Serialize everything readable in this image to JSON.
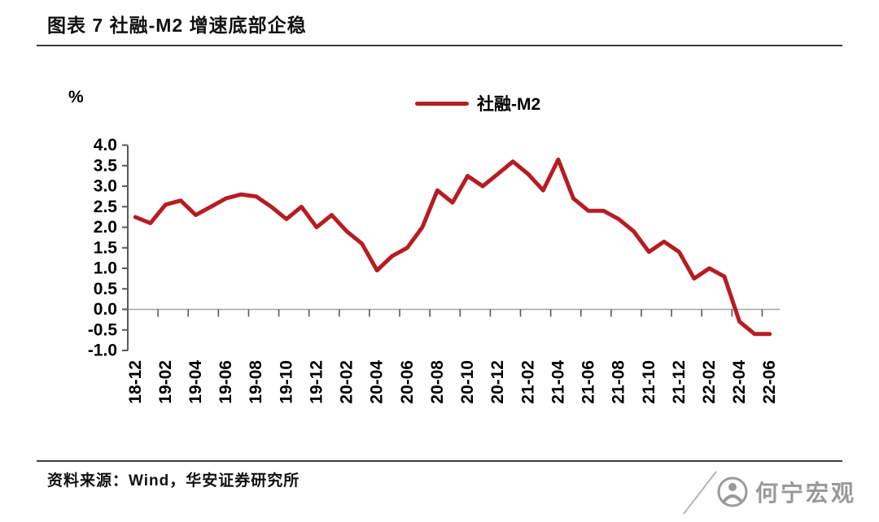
{
  "header": {
    "title": "图表 7 社融-M2 增速底部企稳"
  },
  "chart": {
    "unit_label": "%",
    "legend_label": "社融-M2"
  },
  "chart_data": {
    "type": "line",
    "title": "图表 7 社融-M2 增速底部企稳",
    "ylabel": "%",
    "ylim": [
      -1.0,
      4.0
    ],
    "ytick_step": 0.5,
    "grid": "zero-line-only",
    "legend_position": "top-center",
    "x_tick_labels": [
      "18-12",
      "19-02",
      "19-04",
      "19-06",
      "19-08",
      "19-10",
      "19-12",
      "20-02",
      "20-04",
      "20-06",
      "20-08",
      "20-10",
      "20-12",
      "21-02",
      "21-04",
      "21-06",
      "21-08",
      "21-10",
      "21-12",
      "22-02",
      "22-04",
      "22-06"
    ],
    "x": [
      "18-12",
      "19-01",
      "19-02",
      "19-03",
      "19-04",
      "19-05",
      "19-06",
      "19-07",
      "19-08",
      "19-09",
      "19-10",
      "19-11",
      "19-12",
      "20-01",
      "20-02",
      "20-03",
      "20-04",
      "20-05",
      "20-06",
      "20-07",
      "20-08",
      "20-09",
      "20-10",
      "20-11",
      "20-12",
      "21-01",
      "21-02",
      "21-03",
      "21-04",
      "21-05",
      "21-06",
      "21-07",
      "21-08",
      "21-09",
      "21-10",
      "21-11",
      "21-12",
      "22-01",
      "22-02",
      "22-03",
      "22-04",
      "22-05",
      "22-06"
    ],
    "series": [
      {
        "name": "社融-M2",
        "color": "#b61d22",
        "values": [
          2.25,
          2.1,
          2.55,
          2.65,
          2.3,
          2.5,
          2.7,
          2.8,
          2.75,
          2.5,
          2.2,
          2.5,
          2.0,
          2.3,
          1.9,
          1.6,
          0.95,
          1.3,
          1.5,
          2.0,
          2.9,
          2.6,
          3.25,
          3.0,
          3.3,
          3.6,
          3.3,
          2.9,
          3.65,
          2.7,
          2.4,
          2.4,
          2.2,
          1.9,
          1.4,
          1.65,
          1.4,
          0.75,
          1.0,
          0.8,
          -0.3,
          -0.6,
          -0.6
        ]
      }
    ]
  },
  "footer": {
    "source_label": "资料来源：Wind，华安证券研究所"
  },
  "watermark": {
    "text": "何宁宏观"
  }
}
